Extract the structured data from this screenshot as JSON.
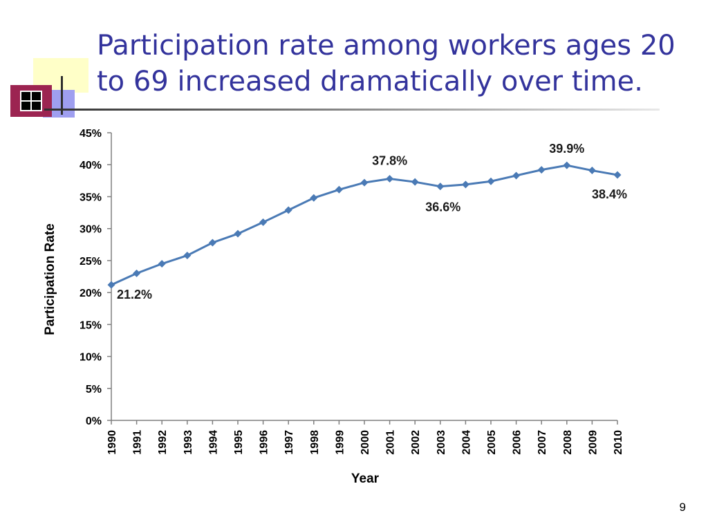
{
  "slide": {
    "title": "Participation rate among workers ages 20 to 69 increased dramatically over time.",
    "page_number": "9"
  },
  "colors": {
    "title": "#33339c",
    "series_line": "#4a7ab5",
    "deco_maroon": "#9c2451",
    "deco_yellow": "#ffffc8",
    "deco_blue": "#9f9ff0"
  },
  "chart_data": {
    "type": "line",
    "title": "",
    "xlabel": "Year",
    "ylabel": "Participation Rate",
    "ylim": [
      0,
      45
    ],
    "y_ticks": [
      "0%",
      "5%",
      "10%",
      "15%",
      "20%",
      "25%",
      "30%",
      "35%",
      "40%",
      "45%"
    ],
    "grid": false,
    "legend": "none",
    "categories": [
      "1990",
      "1991",
      "1992",
      "1993",
      "1994",
      "1995",
      "1996",
      "1997",
      "1998",
      "1999",
      "2000",
      "2001",
      "2002",
      "2003",
      "2004",
      "2005",
      "2006",
      "2007",
      "2008",
      "2009",
      "2010"
    ],
    "series": [
      {
        "values": [
          21.2,
          23.0,
          24.5,
          25.8,
          27.8,
          29.2,
          31.0,
          32.9,
          34.8,
          36.1,
          37.2,
          37.8,
          37.3,
          36.6,
          36.9,
          37.4,
          38.3,
          39.2,
          39.9,
          39.1,
          38.4
        ]
      }
    ],
    "annotations": [
      {
        "year": "1990",
        "text": "21.2%"
      },
      {
        "year": "2001",
        "text": "37.8%"
      },
      {
        "year": "2003",
        "text": "36.6%"
      },
      {
        "year": "2008",
        "text": "39.9%"
      },
      {
        "year": "2010",
        "text": "38.4%"
      }
    ]
  }
}
